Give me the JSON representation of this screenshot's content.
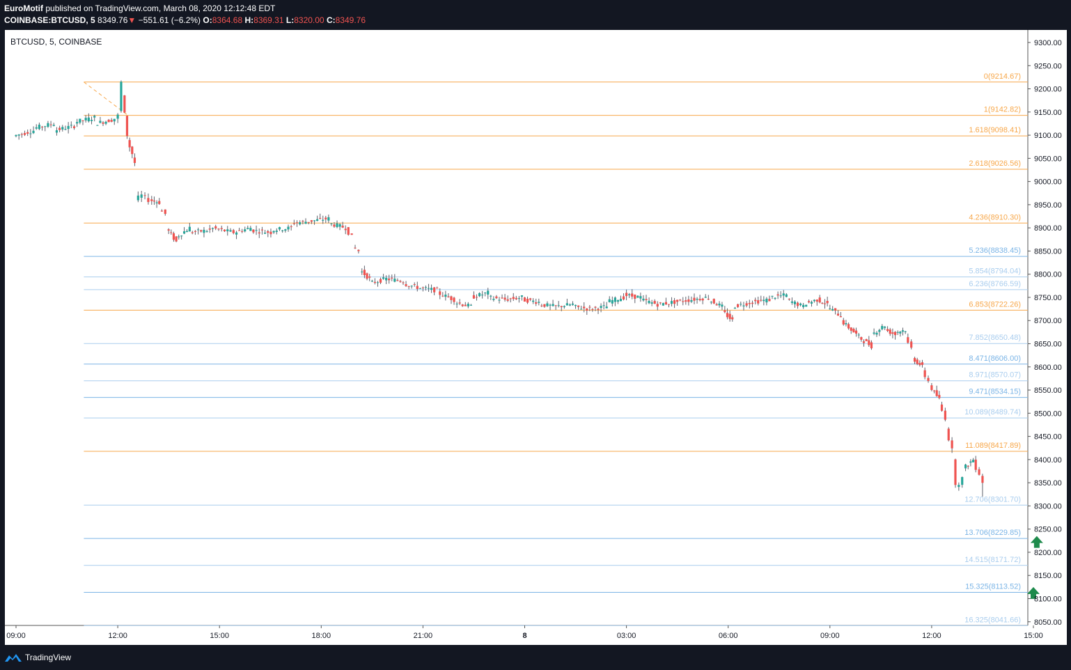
{
  "header": {
    "author": "EuroMotif",
    "published_text": "published on TradingView.com, March 08, 2020 12:12:48 EDT",
    "symbol": "COINBASE:BTCUSD, 5",
    "last": "8349.76",
    "change": "−551.61 (−6.2%)",
    "open_label": "O:",
    "open": "8364.68",
    "high_label": "H:",
    "high": "8369.31",
    "low_label": "L:",
    "low": "8320.00",
    "close_label": "C:",
    "close": "8349.76"
  },
  "chart_data": {
    "type": "candlestick",
    "title": "BTCUSD, 5, COINBASE",
    "ylim": [
      8030,
      9325
    ],
    "y_ticks": [
      9300,
      9250,
      9200,
      9150,
      9100,
      9050,
      9000,
      8950,
      8900,
      8850,
      8800,
      8750,
      8700,
      8650,
      8600,
      8550,
      8500,
      8450,
      8400,
      8350,
      8300,
      8250,
      8200,
      8150,
      8100,
      8050
    ],
    "x_ticks": [
      {
        "label": "09:00",
        "hours": 0
      },
      {
        "label": "12:00",
        "hours": 3
      },
      {
        "label": "15:00",
        "hours": 6
      },
      {
        "label": "18:00",
        "hours": 9
      },
      {
        "label": "21:00",
        "hours": 12
      },
      {
        "label": "8",
        "hours": 15
      },
      {
        "label": "03:00",
        "hours": 18
      },
      {
        "label": "06:00",
        "hours": 21
      },
      {
        "label": "09:00",
        "hours": 24
      },
      {
        "label": "12:00",
        "hours": 27
      },
      {
        "label": "15:00",
        "hours": 30
      }
    ],
    "fib_levels": [
      {
        "label": "0(9214.67)",
        "price": 9214.67,
        "color": "#f7a74a"
      },
      {
        "label": "1(9142.82)",
        "price": 9142.82,
        "color": "#f7a74a"
      },
      {
        "label": "1.618(9098.41)",
        "price": 9098.41,
        "color": "#f7a74a"
      },
      {
        "label": "2.618(9026.56)",
        "price": 9026.56,
        "color": "#f7a74a"
      },
      {
        "label": "4.236(8910.30)",
        "price": 8910.3,
        "color": "#f7a74a"
      },
      {
        "label": "5.236(8838.45)",
        "price": 8838.45,
        "color": "#7ab4e6"
      },
      {
        "label": "5.854(8794.04)",
        "price": 8794.04,
        "color": "#a9cdee"
      },
      {
        "label": "6.236(8766.59)",
        "price": 8766.59,
        "color": "#a9cdee"
      },
      {
        "label": "6.853(8722.26)",
        "price": 8722.26,
        "color": "#f7a74a"
      },
      {
        "label": "7.852(8650.48)",
        "price": 8650.48,
        "color": "#a9cdee"
      },
      {
        "label": "8.471(8606.00)",
        "price": 8606.0,
        "color": "#7ab4e6"
      },
      {
        "label": "8.971(8570.07)",
        "price": 8570.07,
        "color": "#a9cdee"
      },
      {
        "label": "9.471(8534.15)",
        "price": 8534.15,
        "color": "#7ab4e6"
      },
      {
        "label": "10.089(8489.74)",
        "price": 8489.74,
        "color": "#a9cdee"
      },
      {
        "label": "11.089(8417.89)",
        "price": 8417.89,
        "color": "#f7a74a"
      },
      {
        "label": "12.706(8301.70)",
        "price": 8301.7,
        "color": "#a9cdee"
      },
      {
        "label": "13.706(8229.85)",
        "price": 8229.85,
        "color": "#7ab4e6"
      },
      {
        "label": "14.515(8171.72)",
        "price": 8171.72,
        "color": "#a9cdee"
      },
      {
        "label": "15.325(8113.52)",
        "price": 8113.52,
        "color": "#7ab4e6"
      },
      {
        "label": "16.325(8041.66)",
        "price": 8041.66,
        "color": "#a9cdee"
      }
    ],
    "fib_start_hours": 2,
    "price_path": [
      [
        0,
        9098,
        9110
      ],
      [
        0.6,
        9115,
        9125
      ],
      [
        1.2,
        9110,
        9120
      ],
      [
        1.8,
        9128,
        9138
      ],
      [
        2.4,
        9125,
        9133
      ],
      [
        2.9,
        9130,
        9142
      ],
      [
        3.1,
        9150,
        9214
      ],
      [
        3.2,
        9190,
        9100
      ],
      [
        3.35,
        9090,
        9060
      ],
      [
        3.5,
        9050,
        9040
      ],
      [
        3.6,
        8960,
        8970
      ],
      [
        3.8,
        8970,
        8960
      ],
      [
        4.0,
        8960,
        8955
      ],
      [
        4.3,
        8940,
        8930
      ],
      [
        4.5,
        8900,
        8870
      ],
      [
        4.8,
        8880,
        8900
      ],
      [
        5.2,
        8890,
        8895
      ],
      [
        5.8,
        8900,
        8890
      ],
      [
        6.5,
        8890,
        8900
      ],
      [
        7.0,
        8895,
        8890
      ],
      [
        7.6,
        8895,
        8900
      ],
      [
        8.2,
        8910,
        8915
      ],
      [
        8.8,
        8915,
        8920
      ],
      [
        9.3,
        8910,
        8900
      ],
      [
        9.8,
        8900,
        8880
      ],
      [
        10.0,
        8860,
        8850
      ],
      [
        10.2,
        8810,
        8790
      ],
      [
        10.5,
        8780,
        8790
      ],
      [
        11.0,
        8790,
        8785
      ],
      [
        11.5,
        8780,
        8770
      ],
      [
        12.0,
        8770,
        8765
      ],
      [
        12.5,
        8760,
        8745
      ],
      [
        13.0,
        8740,
        8730
      ],
      [
        13.5,
        8750,
        8760
      ],
      [
        14.0,
        8750,
        8745
      ],
      [
        14.5,
        8745,
        8750
      ],
      [
        15.0,
        8745,
        8740
      ],
      [
        15.5,
        8735,
        8730
      ],
      [
        16.0,
        8730,
        8735
      ],
      [
        16.5,
        8730,
        8725
      ],
      [
        17.0,
        8725,
        8730
      ],
      [
        17.5,
        8740,
        8750
      ],
      [
        18.0,
        8755,
        8750
      ],
      [
        18.5,
        8745,
        8735
      ],
      [
        19.0,
        8735,
        8740
      ],
      [
        19.5,
        8740,
        8745
      ],
      [
        20.0,
        8745,
        8750
      ],
      [
        20.5,
        8745,
        8730
      ],
      [
        20.9,
        8720,
        8700
      ],
      [
        21.2,
        8730,
        8740
      ],
      [
        21.8,
        8740,
        8745
      ],
      [
        22.3,
        8750,
        8755
      ],
      [
        22.8,
        8745,
        8730
      ],
      [
        23.3,
        8735,
        8745
      ],
      [
        23.7,
        8745,
        8735
      ],
      [
        24.0,
        8730,
        8710
      ],
      [
        24.4,
        8700,
        8680
      ],
      [
        24.7,
        8680,
        8660
      ],
      [
        25.0,
        8660,
        8645
      ],
      [
        25.3,
        8670,
        8690
      ],
      [
        25.7,
        8680,
        8670
      ],
      [
        26.0,
        8675,
        8680
      ],
      [
        26.3,
        8660,
        8640
      ],
      [
        26.5,
        8620,
        8600
      ],
      [
        26.8,
        8590,
        8570
      ],
      [
        27.0,
        8560,
        8530
      ],
      [
        27.3,
        8520,
        8490
      ],
      [
        27.5,
        8470,
        8420
      ],
      [
        27.7,
        8400,
        8350
      ],
      [
        27.8,
        8340,
        8360
      ],
      [
        28.0,
        8380,
        8400
      ],
      [
        28.3,
        8395,
        8370
      ],
      [
        28.5,
        8364.68,
        8349.76
      ]
    ],
    "markers": [
      {
        "type": "arrow-up",
        "hours": 30.1,
        "price": 8220,
        "color": "#1e8b4c"
      },
      {
        "type": "arrow-up",
        "hours": 30.0,
        "price": 8110,
        "color": "#1e8b4c"
      }
    ],
    "grid": false,
    "up_color": "#26a69a",
    "down_color": "#ef5350"
  },
  "footer": {
    "brand": "TradingView"
  }
}
